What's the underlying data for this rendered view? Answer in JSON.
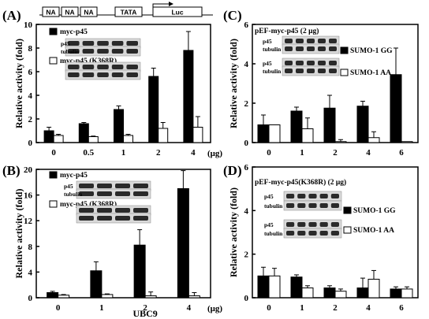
{
  "promoter": {
    "boxes": [
      "NA",
      "NA",
      "NA",
      "TATA"
    ],
    "reporter": "Luc"
  },
  "chart_data": [
    {
      "panel": "(A)",
      "type": "bar",
      "categories": [
        "0",
        "0.5",
        "1",
        "2",
        "4"
      ],
      "unit": "(μg)",
      "ylabel": "Relative activity (fold)",
      "ylim": [
        0,
        10
      ],
      "yticks": [
        0,
        2,
        4,
        6,
        8,
        10
      ],
      "legend": [
        "myc-p45",
        "myc-p45 (K368R)"
      ],
      "blot_labels": [
        "p45",
        "tubulin"
      ],
      "series": [
        {
          "name": "myc-p45",
          "color": "#000000",
          "values": [
            1.0,
            1.6,
            2.8,
            5.6,
            7.8
          ],
          "errors": [
            0.3,
            0.1,
            0.3,
            0.7,
            1.6
          ]
        },
        {
          "name": "myc-p45 (K368R)",
          "color": "#ffffff",
          "values": [
            0.6,
            0.5,
            0.6,
            1.2,
            1.3
          ],
          "errors": [
            0.1,
            0.05,
            0.1,
            0.5,
            0.9
          ]
        }
      ]
    },
    {
      "panel": "(B)",
      "type": "bar",
      "categories": [
        "0",
        "1",
        "2",
        "4"
      ],
      "unit": "(μg)",
      "xlabel": "UBC9",
      "ylabel": "Relative activity (fold)",
      "ylim": [
        0,
        20
      ],
      "yticks": [
        0,
        4,
        8,
        12,
        16,
        20
      ],
      "legend": [
        "myc-p45",
        "myc-p45 (K368R)"
      ],
      "blot_labels": [
        "p45",
        "tubulin"
      ],
      "series": [
        {
          "name": "myc-p45",
          "color": "#000000",
          "values": [
            0.8,
            4.2,
            8.2,
            17.0
          ],
          "errors": [
            0.2,
            1.4,
            2.4,
            2.8
          ]
        },
        {
          "name": "myc-p45 (K368R)",
          "color": "#ffffff",
          "values": [
            0.4,
            0.5,
            0.3,
            0.3
          ],
          "errors": [
            0.1,
            0.1,
            0.6,
            0.5
          ]
        }
      ]
    },
    {
      "panel": "(C)",
      "type": "bar",
      "title": "pEF-myc-p45 (2 μg)",
      "categories": [
        "0",
        "1",
        "2",
        "4",
        "6"
      ],
      "ylabel": "Relative activity (fold)",
      "ylim": [
        0,
        6
      ],
      "yticks": [
        0,
        2,
        4,
        6
      ],
      "legend": [
        "SUMO-1 GG",
        "SUMO-1 AA"
      ],
      "blot_labels": [
        "p45",
        "tubulin",
        "p45",
        "tubulin"
      ],
      "series": [
        {
          "name": "SUMO-1 GG",
          "color": "#000000",
          "values": [
            0.9,
            1.6,
            1.75,
            1.85,
            3.45
          ],
          "errors": [
            0.5,
            0.2,
            0.65,
            0.25,
            1.35
          ]
        },
        {
          "name": "SUMO-1 AA",
          "color": "#ffffff",
          "values": [
            0.9,
            0.7,
            0.05,
            0.25,
            0.05
          ],
          "errors": [
            0.0,
            0.55,
            0.1,
            0.3,
            0.0
          ]
        }
      ]
    },
    {
      "panel": "(D)",
      "type": "bar",
      "title": "pEF-myc-p45(K368R) (2 μg)",
      "categories": [
        "0",
        "1",
        "2",
        "4",
        "6"
      ],
      "ylabel": "Relative activity (fold)",
      "ylim": [
        0,
        6
      ],
      "yticks": [
        0,
        2,
        4,
        6
      ],
      "legend": [
        "SUMO-1 GG",
        "SUMO-1 AA"
      ],
      "blot_labels": [
        "p45",
        "tubulin",
        "p45",
        "tubulin"
      ],
      "series": [
        {
          "name": "SUMO-1 GG",
          "color": "#000000",
          "values": [
            1.0,
            0.95,
            0.45,
            0.45,
            0.4
          ],
          "errors": [
            0.4,
            0.1,
            0.1,
            0.45,
            0.1
          ]
        },
        {
          "name": "SUMO-1 AA",
          "color": "#ffffff",
          "values": [
            1.0,
            0.45,
            0.3,
            0.85,
            0.4
          ],
          "errors": [
            0.35,
            0.1,
            0.1,
            0.4,
            0.1
          ]
        }
      ]
    }
  ]
}
